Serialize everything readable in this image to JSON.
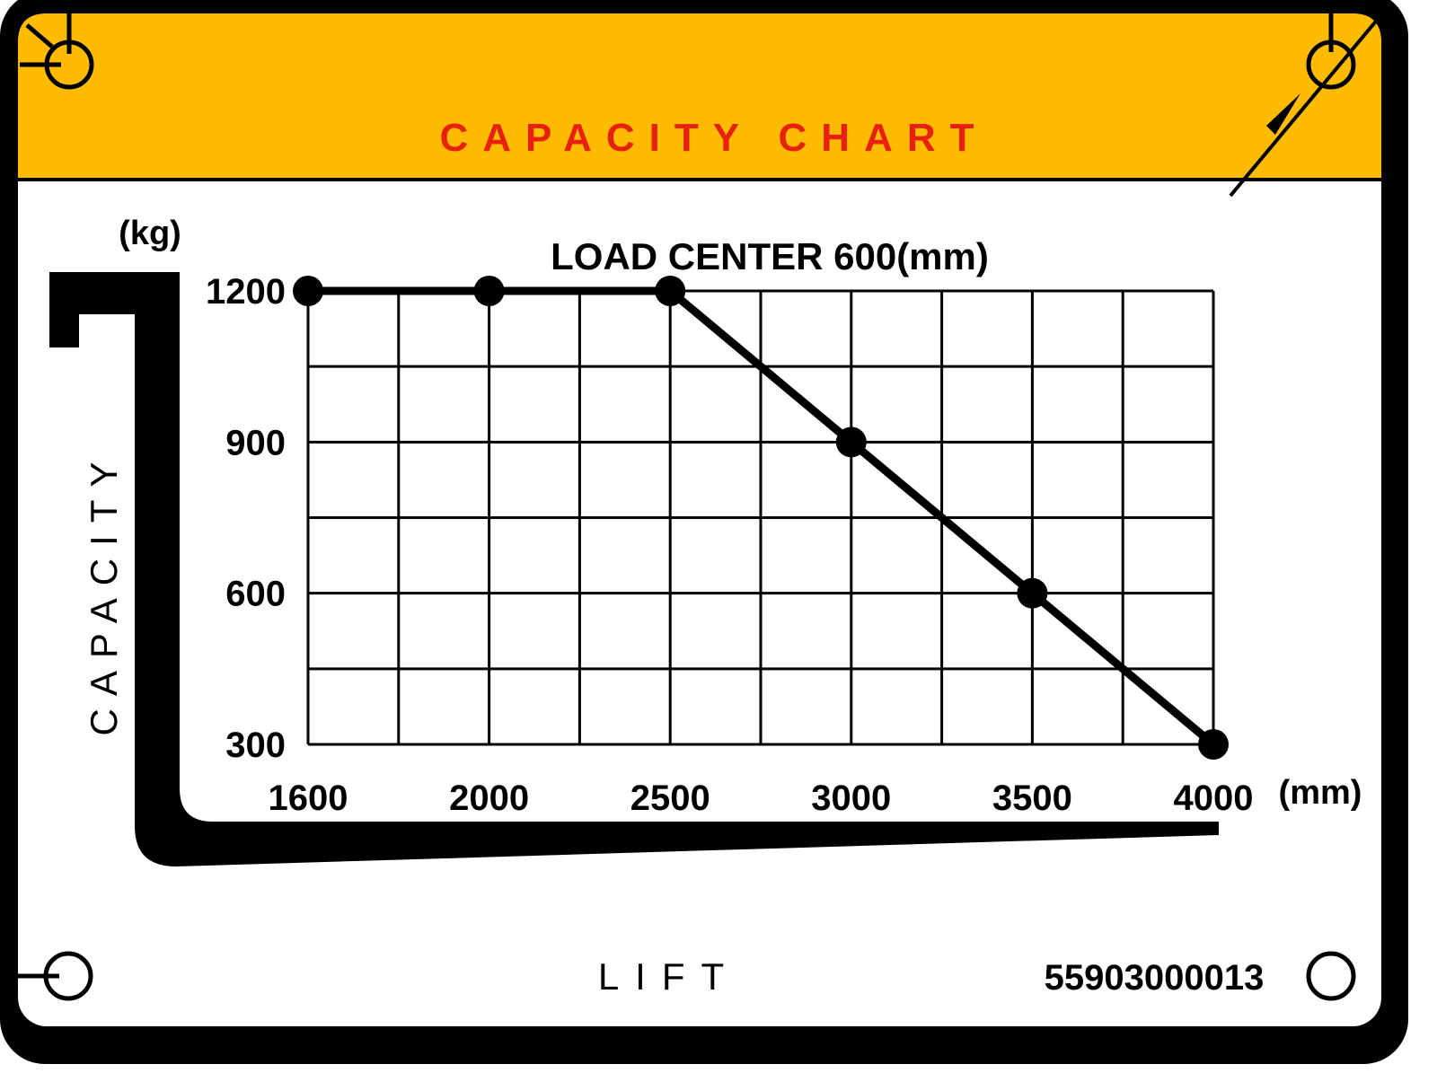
{
  "header": {
    "title": "CAPACITY CHART"
  },
  "colors": {
    "header_bg": "#FFBB00",
    "title": "#E8210E",
    "border": "#000000",
    "line": "#000000"
  },
  "icons": [
    "mounting-hole-icon",
    "arrow-icon"
  ],
  "footer": {
    "label": "LIFT",
    "part_number": "55903000013"
  },
  "chart_data": {
    "type": "line",
    "title": "LOAD CENTER 600(mm)",
    "ylabel": "CAPACITY",
    "yunit": "(kg)",
    "xunit": "(mm)",
    "xlabel": "LIFT",
    "x": [
      1600,
      2000,
      2500,
      3000,
      3500,
      4000
    ],
    "y": [
      1200,
      1200,
      1200,
      900,
      600,
      300
    ],
    "xtick_labels": [
      "1600",
      "2000",
      "2500",
      "3000",
      "3500",
      "4000"
    ],
    "ytick_labels": [
      "1200",
      "900",
      "600",
      "300"
    ],
    "ylim": [
      300,
      1200
    ],
    "grid": true,
    "markers": true
  }
}
